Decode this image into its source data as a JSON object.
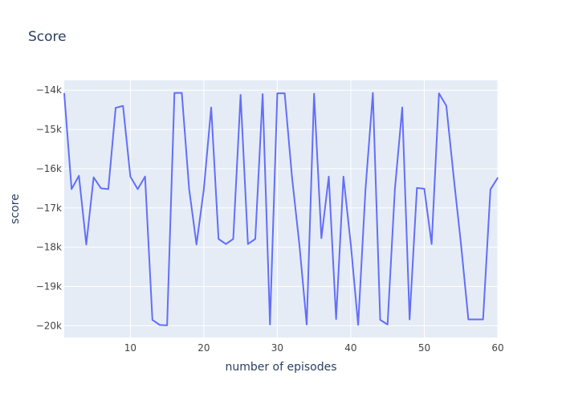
{
  "chart_data": {
    "type": "line",
    "title": "Score",
    "xlabel": "number of episodes",
    "ylabel": "score",
    "xlim": [
      1,
      60
    ],
    "ylim": [
      -20300,
      -13750
    ],
    "x_ticks": [
      10,
      20,
      30,
      40,
      50,
      60
    ],
    "y_ticks": [
      {
        "value": -14000,
        "label": "−14k"
      },
      {
        "value": -15000,
        "label": "−15k"
      },
      {
        "value": -16000,
        "label": "−16k"
      },
      {
        "value": -17000,
        "label": "−17k"
      },
      {
        "value": -18000,
        "label": "−18k"
      },
      {
        "value": -19000,
        "label": "−19k"
      },
      {
        "value": -20000,
        "label": "−20k"
      }
    ],
    "grid": true,
    "colors": {
      "line": "#636efa",
      "plot_bg": "#e5ecf6",
      "grid": "#ffffff",
      "text": "#2a3f5f",
      "tick_text": "#444444"
    },
    "x": [
      1,
      2,
      3,
      4,
      5,
      6,
      7,
      8,
      9,
      10,
      11,
      12,
      13,
      14,
      15,
      16,
      17,
      18,
      19,
      20,
      21,
      22,
      23,
      24,
      25,
      26,
      27,
      28,
      29,
      30,
      31,
      32,
      33,
      34,
      35,
      36,
      37,
      38,
      39,
      40,
      41,
      42,
      43,
      44,
      45,
      46,
      47,
      48,
      49,
      50,
      51,
      52,
      53,
      54,
      55,
      56,
      57,
      58,
      59,
      60
    ],
    "series": [
      {
        "values": [
          -14080,
          -16520,
          -16180,
          -17930,
          -16220,
          -16500,
          -16520,
          -14450,
          -14400,
          -16200,
          -16520,
          -16200,
          -19850,
          -19980,
          -19990,
          -14070,
          -14070,
          -16520,
          -17930,
          -16520,
          -14440,
          -17790,
          -17920,
          -17790,
          -14120,
          -17920,
          -17790,
          -14100,
          -19970,
          -14080,
          -14080,
          -16220,
          -17930,
          -19970,
          -14090,
          -17770,
          -16200,
          -19830,
          -16200,
          -17930,
          -19980,
          -16520,
          -14070,
          -19850,
          -19970,
          -16520,
          -14440,
          -19840,
          -16490,
          -16510,
          -17920,
          -14080,
          -14400,
          -16210,
          -17930,
          -19840,
          -19840,
          -19840,
          -16530,
          -16230
        ]
      }
    ]
  }
}
